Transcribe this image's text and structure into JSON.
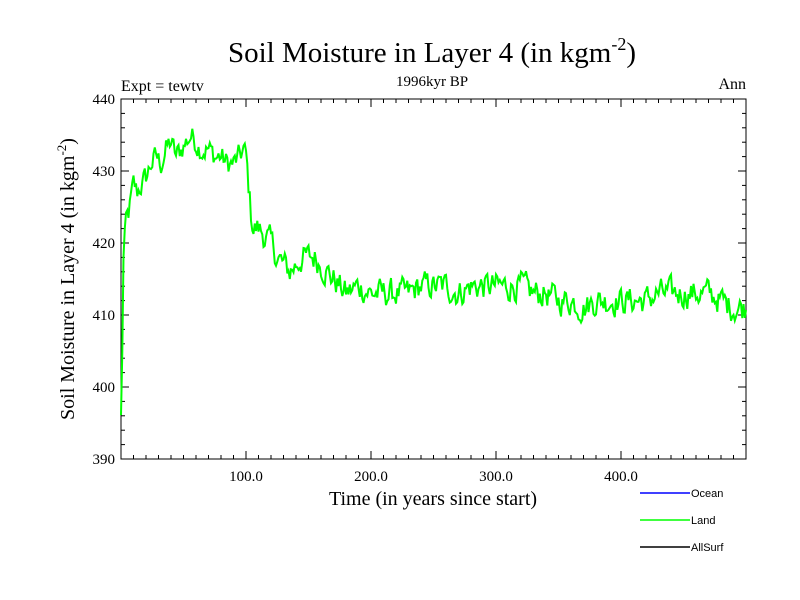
{
  "chart_data": {
    "type": "line",
    "title": "Soil Moisture in Layer 4 (in kgm",
    "title_sup": "-2",
    "title_close": ")",
    "subtitle_left": "Expt = tewtv",
    "subtitle_center": "1996kyr BP",
    "subtitle_right": "Ann",
    "xlabel": "Time (in years since start)",
    "ylabel": "Soil Moisture in Layer 4 (in kgm",
    "ylabel_sup": "-2",
    "ylabel_close": ")",
    "xlim": [
      0,
      500
    ],
    "ylim": [
      390,
      440
    ],
    "xticks": [
      100,
      200,
      300,
      400
    ],
    "xtick_labels": [
      "100.0",
      "200.0",
      "300.0",
      "400.0"
    ],
    "yticks": [
      390,
      400,
      410,
      420,
      430,
      440
    ],
    "ytick_labels": [
      "390",
      "400",
      "410",
      "420",
      "430",
      "440"
    ],
    "legend": [
      {
        "name": "Ocean",
        "color": "#0000ff"
      },
      {
        "name": "Land",
        "color": "#00ff00"
      },
      {
        "name": "AllSurf",
        "color": "#000000"
      }
    ],
    "series": [
      {
        "name": "Land",
        "color": "#00ff00",
        "anchors": [
          [
            0,
            396
          ],
          [
            1,
            405
          ],
          [
            2,
            418
          ],
          [
            4,
            423
          ],
          [
            6,
            424
          ],
          [
            8,
            426
          ],
          [
            10,
            428
          ],
          [
            13,
            427
          ],
          [
            16,
            428
          ],
          [
            20,
            429
          ],
          [
            24,
            431
          ],
          [
            28,
            432
          ],
          [
            32,
            431
          ],
          [
            36,
            433
          ],
          [
            40,
            434
          ],
          [
            44,
            432
          ],
          [
            48,
            433
          ],
          [
            52,
            434
          ],
          [
            56,
            435
          ],
          [
            60,
            434
          ],
          [
            65,
            433
          ],
          [
            70,
            433
          ],
          [
            75,
            432
          ],
          [
            80,
            432
          ],
          [
            85,
            431
          ],
          [
            90,
            431
          ],
          [
            95,
            432
          ],
          [
            98,
            433
          ],
          [
            100,
            432
          ],
          [
            102,
            428
          ],
          [
            104,
            424
          ],
          [
            106,
            422
          ],
          [
            110,
            422
          ],
          [
            115,
            421
          ],
          [
            120,
            420
          ],
          [
            125,
            418
          ],
          [
            130,
            417
          ],
          [
            135,
            416
          ],
          [
            140,
            417
          ],
          [
            145,
            418
          ],
          [
            150,
            418
          ],
          [
            155,
            418
          ],
          [
            160,
            417
          ],
          [
            165,
            416
          ],
          [
            170,
            415
          ],
          [
            175,
            414
          ],
          [
            180,
            413
          ],
          [
            190,
            414
          ],
          [
            200,
            413
          ],
          [
            210,
            413
          ],
          [
            220,
            413
          ],
          [
            230,
            413
          ],
          [
            240,
            414
          ],
          [
            250,
            414
          ],
          [
            260,
            414
          ],
          [
            270,
            413
          ],
          [
            280,
            414
          ],
          [
            290,
            414
          ],
          [
            300,
            414
          ],
          [
            310,
            414
          ],
          [
            320,
            414
          ],
          [
            330,
            413
          ],
          [
            340,
            413
          ],
          [
            350,
            412
          ],
          [
            360,
            412
          ],
          [
            370,
            411
          ],
          [
            380,
            412
          ],
          [
            390,
            412
          ],
          [
            400,
            412
          ],
          [
            410,
            412
          ],
          [
            420,
            412
          ],
          [
            430,
            413
          ],
          [
            440,
            413
          ],
          [
            450,
            413
          ],
          [
            460,
            413
          ],
          [
            470,
            413
          ],
          [
            480,
            412
          ],
          [
            490,
            411
          ],
          [
            500,
            411
          ]
        ]
      }
    ]
  }
}
